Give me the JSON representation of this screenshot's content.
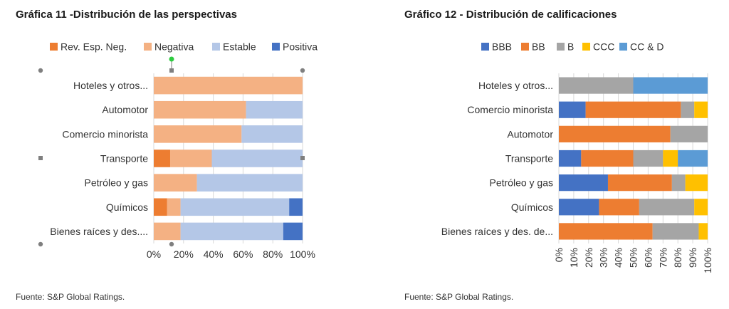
{
  "colors": {
    "rev_esp_neg": "#ED7D31",
    "negativa": "#F4B183",
    "estable": "#B4C7E7",
    "positiva": "#4472C4",
    "bbb": "#4472C4",
    "bb": "#ED7D31",
    "b": "#A5A5A5",
    "ccc": "#FFC000",
    "cc_d": "#5B9BD5",
    "grid": "#d9d9d9",
    "selection_handle": "#7f7f7f",
    "rotate_handle": "#2ecc40"
  },
  "left": {
    "title": "Gráfica 11 -Distribución de las perspectivas",
    "source": "Fuente: S&P Global Ratings."
  },
  "right": {
    "title": "Gráfico 12 - Distribución de calificaciones",
    "source": "Fuente: S&P Global Ratings."
  },
  "chart_data": [
    {
      "type": "bar",
      "orientation": "horizontal",
      "stacked": "100%",
      "title": "Gráfica 11 -Distribución de las perspectivas",
      "categories": [
        "Hoteles y otros...",
        "Automotor",
        "Comercio minorista",
        "Transporte",
        "Petróleo y gas",
        "Químicos",
        "Bienes raíces y des...."
      ],
      "series": [
        {
          "name": "Rev. Esp. Neg.",
          "color": "#ED7D31",
          "values": [
            0,
            0,
            0,
            11,
            0,
            9,
            0
          ]
        },
        {
          "name": "Negativa",
          "color": "#F4B183",
          "values": [
            100,
            62,
            59,
            28,
            29,
            9,
            18
          ]
        },
        {
          "name": "Estable",
          "color": "#B4C7E7",
          "values": [
            0,
            38,
            41,
            61,
            71,
            73,
            69
          ]
        },
        {
          "name": "Positiva",
          "color": "#4472C4",
          "values": [
            0,
            0,
            0,
            0,
            0,
            9,
            13
          ]
        }
      ],
      "xticks": [
        "0%",
        "20%",
        "40%",
        "60%",
        "80%",
        "100%"
      ],
      "xlim": [
        0,
        100
      ],
      "grid": true,
      "legend": "top"
    },
    {
      "type": "bar",
      "orientation": "horizontal",
      "stacked": "100%",
      "title": "Gráfico 12 - Distribución de calificaciones",
      "categories": [
        "Hoteles y otros...",
        "Comercio minorista",
        "Automotor",
        "Transporte",
        "Petróleo y gas",
        "Químicos",
        "Bienes raíces y des. de..."
      ],
      "series": [
        {
          "name": "BBB",
          "color": "#4472C4",
          "values": [
            0,
            18,
            0,
            15,
            33,
            27,
            0
          ]
        },
        {
          "name": "BB",
          "color": "#ED7D31",
          "values": [
            0,
            64,
            75,
            35,
            43,
            27,
            63
          ]
        },
        {
          "name": "B",
          "color": "#A5A5A5",
          "values": [
            50,
            9,
            25,
            20,
            9,
            37,
            31
          ]
        },
        {
          "name": "CCC",
          "color": "#FFC000",
          "values": [
            0,
            9,
            0,
            10,
            15,
            9,
            6
          ]
        },
        {
          "name": "CC & D",
          "color": "#5B9BD5",
          "values": [
            50,
            0,
            0,
            20,
            0,
            0,
            0
          ]
        }
      ],
      "xticks": [
        "0%",
        "10%",
        "20%",
        "30%",
        "40%",
        "50%",
        "60%",
        "70%",
        "80%",
        "90%",
        "100%"
      ],
      "xlim": [
        0,
        100
      ],
      "grid": true,
      "legend": "top"
    }
  ]
}
